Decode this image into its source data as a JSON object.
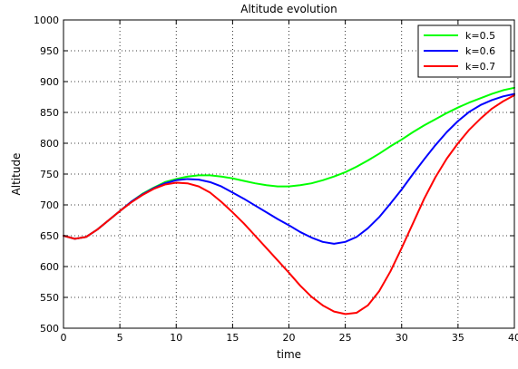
{
  "chart_data": {
    "type": "line",
    "title": "Altitude evolution",
    "xlabel": "time",
    "ylabel": "Altitude",
    "xlim": [
      0,
      40
    ],
    "ylim": [
      500,
      1000
    ],
    "xticks": [
      0,
      5,
      10,
      15,
      20,
      25,
      30,
      35,
      40
    ],
    "xtick_labels": [
      "0",
      "5",
      "10",
      "15",
      "20",
      "25",
      "30",
      "35",
      "40"
    ],
    "yticks": [
      500,
      550,
      600,
      650,
      700,
      750,
      800,
      850,
      900,
      950,
      1000
    ],
    "ytick_labels": [
      "500",
      "550",
      "600",
      "650",
      "700",
      "750",
      "800",
      "850",
      "900",
      "950",
      "1000"
    ],
    "grid": true,
    "legend_position": "top-right",
    "series": [
      {
        "name": "k=0.5",
        "color": "#00ff00",
        "x": [
          0,
          1,
          2,
          3,
          4,
          5,
          6,
          7,
          8,
          9,
          10,
          11,
          12,
          13,
          14,
          15,
          16,
          17,
          18,
          19,
          20,
          21,
          22,
          23,
          24,
          25,
          26,
          27,
          28,
          29,
          30,
          31,
          32,
          33,
          34,
          35,
          36,
          37,
          38,
          39,
          40
        ],
        "y": [
          650,
          645,
          648,
          660,
          675,
          690,
          705,
          718,
          728,
          737,
          742,
          746,
          748,
          748,
          746,
          743,
          739,
          735,
          732,
          730,
          730,
          732,
          735,
          740,
          746,
          753,
          762,
          772,
          783,
          795,
          806,
          818,
          829,
          839,
          849,
          858,
          866,
          873,
          880,
          886,
          890
        ]
      },
      {
        "name": "k=0.6",
        "color": "#0000ff",
        "x": [
          0,
          1,
          2,
          3,
          4,
          5,
          6,
          7,
          8,
          9,
          10,
          11,
          12,
          13,
          14,
          15,
          16,
          17,
          18,
          19,
          20,
          21,
          22,
          23,
          24,
          25,
          26,
          27,
          28,
          29,
          30,
          31,
          32,
          33,
          34,
          35,
          36,
          37,
          38,
          39,
          40
        ],
        "y": [
          650,
          645,
          648,
          660,
          675,
          690,
          705,
          717,
          727,
          735,
          740,
          742,
          741,
          737,
          730,
          720,
          710,
          699,
          688,
          677,
          667,
          656,
          647,
          640,
          637,
          640,
          648,
          662,
          680,
          702,
          725,
          750,
          774,
          797,
          818,
          836,
          851,
          862,
          870,
          876,
          880
        ]
      },
      {
        "name": "k=0.7",
        "color": "#ff0000",
        "x": [
          0,
          1,
          2,
          3,
          4,
          5,
          6,
          7,
          8,
          9,
          10,
          11,
          12,
          13,
          14,
          15,
          16,
          17,
          18,
          19,
          20,
          21,
          22,
          23,
          24,
          25,
          26,
          27,
          28,
          29,
          30,
          31,
          32,
          33,
          34,
          35,
          36,
          37,
          38,
          39,
          40
        ],
        "y": [
          650,
          645,
          648,
          660,
          675,
          690,
          704,
          716,
          726,
          733,
          736,
          735,
          730,
          720,
          705,
          688,
          670,
          650,
          630,
          610,
          590,
          569,
          551,
          537,
          527,
          523,
          525,
          537,
          560,
          592,
          630,
          670,
          710,
          745,
          775,
          800,
          822,
          840,
          856,
          868,
          878
        ]
      }
    ]
  }
}
